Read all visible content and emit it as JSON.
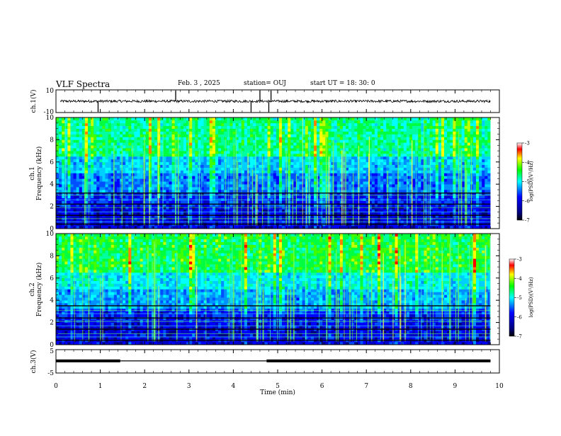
{
  "header": {
    "title": "VLF Spectra",
    "date": "Feb. 3 , 2025",
    "station": "station= OUJ",
    "start": "start UT = 18: 30: 0"
  },
  "chart_data": [
    {
      "type": "line",
      "name": "ch1-waveform",
      "ylabel": "ch.1(V)",
      "ylim": [
        -10,
        10
      ],
      "ytick_labels": [
        "10",
        "-10"
      ],
      "x_range": [
        0,
        10
      ],
      "baseline": 0,
      "spikes_min": [
        0.95,
        2.7,
        4.4,
        4.6,
        4.8,
        4.85
      ]
    },
    {
      "type": "heatmap",
      "name": "ch1-spectrogram",
      "ylabel_line1": "ch.1",
      "ylabel_line2": "Frequency (kHz)",
      "ylim": [
        0,
        10
      ],
      "ytick_labels": [
        "0",
        "2",
        "4",
        "6",
        "8",
        "10"
      ],
      "x_range": [
        0,
        10
      ],
      "colorbar_label": "log(PSD)(V²/Hz)",
      "colorbar_range": [
        -7,
        -3
      ],
      "colorbar_ticks": [
        "-3",
        "-4",
        "-5",
        "-6",
        "-7"
      ]
    },
    {
      "type": "heatmap",
      "name": "ch2-spectrogram",
      "ylabel_line1": "ch.2",
      "ylabel_line2": "Frequency (kHz)",
      "ylim": [
        0,
        10
      ],
      "ytick_labels": [
        "0",
        "2",
        "4",
        "6",
        "8",
        "10"
      ],
      "x_range": [
        0,
        10
      ],
      "colorbar_label": "log(PSD)(V²/Hz)",
      "colorbar_range": [
        -7,
        -3
      ],
      "colorbar_ticks": [
        "-3",
        "-4",
        "-5",
        "-6",
        "-7"
      ]
    },
    {
      "type": "line",
      "name": "ch3-status",
      "ylabel": "ch.3(V)",
      "ylim": [
        -5,
        5
      ],
      "ytick_labels": [
        "5",
        "-5"
      ],
      "x_range": [
        0,
        10
      ],
      "segments": [
        {
          "x": [
            0,
            1.45
          ],
          "value": 0.2,
          "thick": true
        },
        {
          "x": [
            1.45,
            4.75
          ],
          "value": 0.2,
          "thick": false
        },
        {
          "x": [
            4.75,
            9.8
          ],
          "value": 0.2,
          "thick": true
        }
      ]
    }
  ],
  "x_axis": {
    "label": "Time (min)",
    "ticks": [
      "0",
      "1",
      "2",
      "3",
      "4",
      "5",
      "6",
      "7",
      "8",
      "9",
      "10"
    ]
  },
  "colors": {
    "colormap": [
      "#000080",
      "#0000ff",
      "#00ffff",
      "#00ff00",
      "#ffff00",
      "#ff0000",
      "#ffffff"
    ]
  }
}
